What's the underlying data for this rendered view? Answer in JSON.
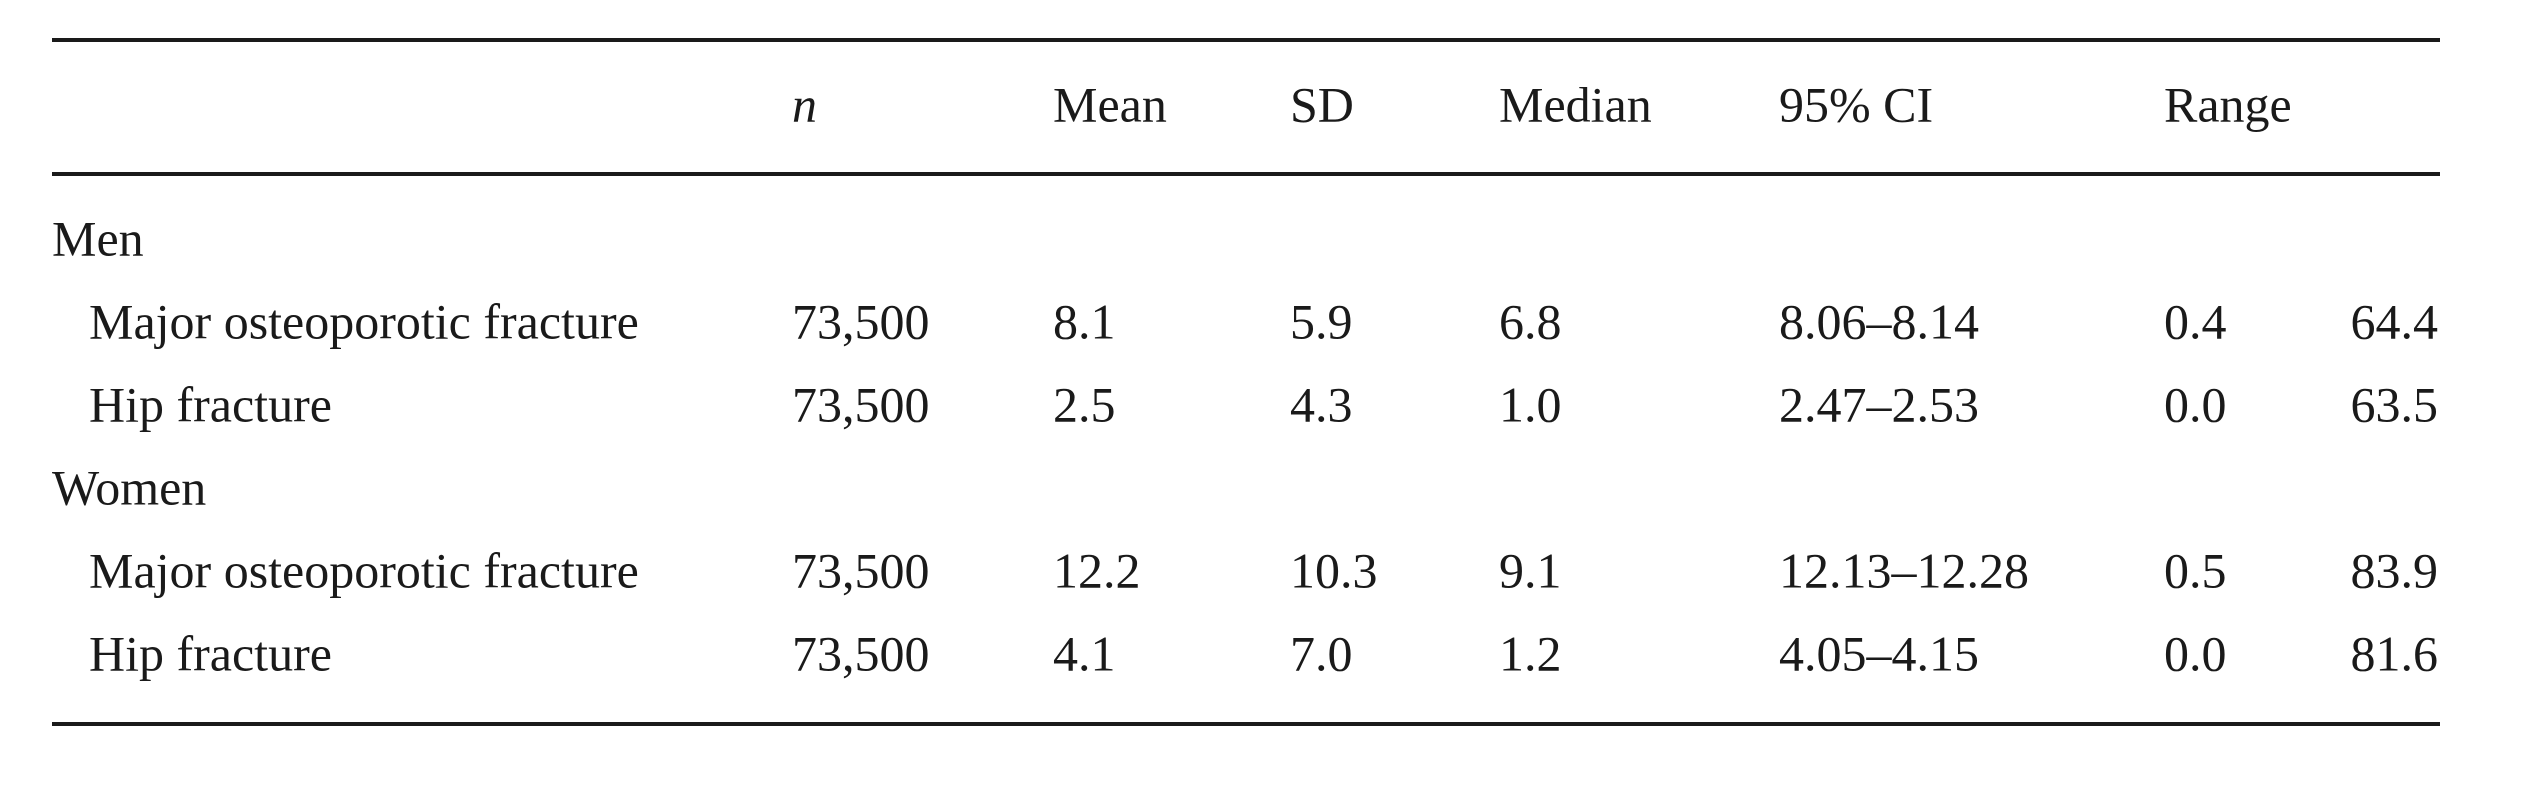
{
  "table": {
    "columns": [
      "n",
      "Mean",
      "SD",
      "Median",
      "95% CI",
      "Range"
    ],
    "groups": [
      {
        "label": "Men",
        "rows": [
          [
            "Major osteoporotic fracture",
            "73,500",
            "8.1",
            "5.9",
            "6.8",
            "8.06–8.14",
            "0.4",
            "64.4"
          ],
          [
            "Hip fracture",
            "73,500",
            "2.5",
            "4.3",
            "1.0",
            "2.47–2.53",
            "0.0",
            "63.5"
          ]
        ]
      },
      {
        "label": "Women",
        "rows": [
          [
            "Major osteoporotic fracture",
            "73,500",
            "12.2",
            "10.3",
            "9.1",
            "12.13–12.28",
            "0.5",
            "83.9"
          ],
          [
            "Hip fracture",
            "73,500",
            "4.1",
            "7.0",
            "1.2",
            "4.05–4.15",
            "0.0",
            "81.6"
          ]
        ]
      }
    ]
  }
}
